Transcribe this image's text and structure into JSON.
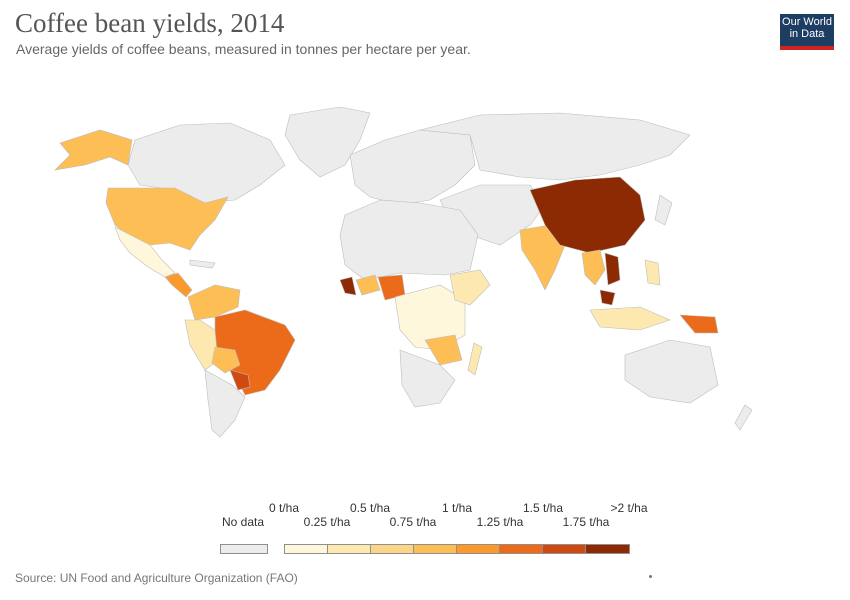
{
  "header": {
    "title": "Coffee bean yields, 2014",
    "subtitle": "Average yields of coffee beans, measured in tonnes per hectare per year."
  },
  "logo": {
    "line1": "Our World",
    "line2": "in Data",
    "bg": "#1d3d63",
    "accent": "#ce261e"
  },
  "legend": {
    "no_data_label": "No data",
    "no_data_color": "#ececec",
    "top_labels": [
      "0 t/ha",
      "0.5 t/ha",
      "1 t/ha",
      "1.5 t/ha",
      ">2 t/ha"
    ],
    "bottom_labels": [
      "0.25 t/ha",
      "0.75 t/ha",
      "1.25 t/ha",
      "1.75 t/ha"
    ],
    "colors": [
      "#fff7dc",
      "#fde9b0",
      "#fdd589",
      "#fcbe55",
      "#fb9a2c",
      "#ec6b1b",
      "#cf4a10",
      "#8c2a04"
    ]
  },
  "footer": {
    "source": "Source: UN Food and Agriculture Organization (FAO)"
  },
  "map_data": {
    "unit": "t/ha",
    "year": 2014,
    "bins": [
      {
        "region": "China",
        "range": ">2 t/ha"
      },
      {
        "region": "Vietnam",
        "range": ">2 t/ha"
      },
      {
        "region": "Malaysia",
        "range": ">2 t/ha"
      },
      {
        "region": "Liberia",
        "range": ">2 t/ha"
      },
      {
        "region": "Ghana",
        "range": ">2 t/ha"
      },
      {
        "region": "Brazil",
        "range": "1.25 – 1.5 t/ha"
      },
      {
        "region": "Paraguay",
        "range": "1.75 – 2 t/ha"
      },
      {
        "region": "Nigeria",
        "range": "1.25 – 1.5 t/ha"
      },
      {
        "region": "Papua New Guinea",
        "range": "1.25 – 1.5 t/ha"
      },
      {
        "region": "Bolivia",
        "range": "1 – 1.25 t/ha"
      },
      {
        "region": "Malawi",
        "range": "1.5 – 1.75 t/ha"
      },
      {
        "region": "United States",
        "range": "0.75 – 1 t/ha"
      },
      {
        "region": "India",
        "range": "0.75 – 1 t/ha"
      },
      {
        "region": "Colombia",
        "range": "0.75 – 1 t/ha"
      },
      {
        "region": "Thailand",
        "range": "0.75 – 1 t/ha"
      },
      {
        "region": "Indonesia",
        "range": "0.5 – 0.75 t/ha"
      },
      {
        "region": "Peru",
        "range": "0.5 – 0.75 t/ha"
      },
      {
        "region": "Mexico",
        "range": "0.25 – 0.5 t/ha"
      },
      {
        "region": "Central African countries",
        "range": "0 – 0.5 t/ha"
      }
    ]
  }
}
